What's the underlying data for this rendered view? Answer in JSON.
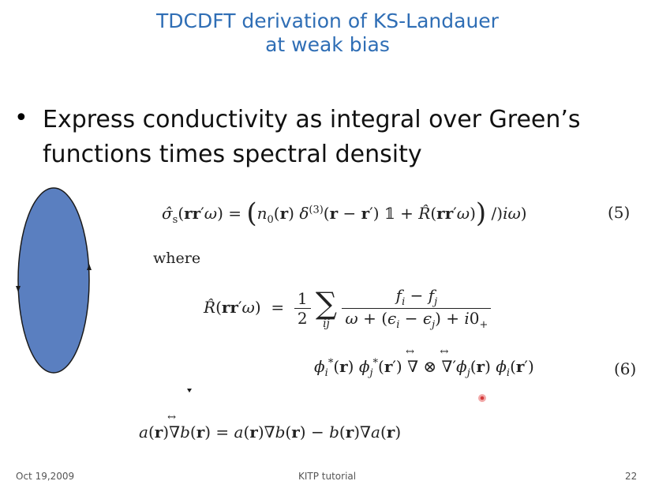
{
  "slide": {
    "title_line1": "TDCDFT derivation of KS-Landauer",
    "title_line2": "at weak bias",
    "bullet": "Express conductivity as integral over Green’s functions times spectral density",
    "equation5_number": "(5)",
    "where_label": "where",
    "equation6_number": "(6)",
    "footer": {
      "date": "Oct 19,2009",
      "center": "KITP tutorial",
      "page": "22"
    },
    "colors": {
      "title": "#2f6eb5",
      "ellipse_fill": "#5a7fc0",
      "ellipse_stroke": "#1a1a1a",
      "laser_dot": "#d23a3a"
    }
  }
}
